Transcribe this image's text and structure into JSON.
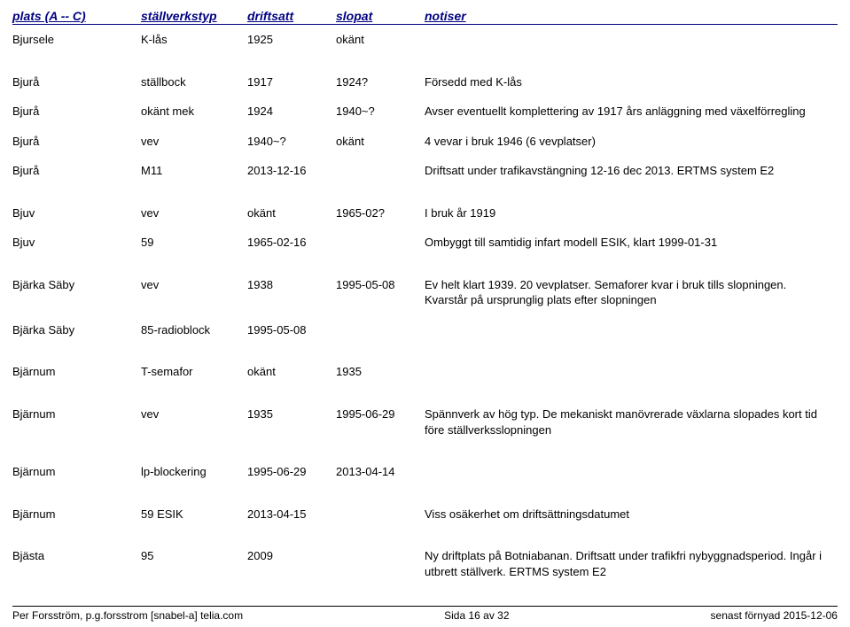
{
  "header": {
    "plats": "plats (A -- C)",
    "typ": "ställverkstyp",
    "drift": "driftsatt",
    "slopat": "slopat",
    "notiser": "notiser"
  },
  "rows": [
    {
      "group": 1,
      "plats": "Bjursele",
      "typ": "K-lås",
      "drift": "1925",
      "slopat": "okänt",
      "notiser": ""
    },
    {
      "group": 2,
      "plats": "Bjurå",
      "typ": "ställbock",
      "drift": "1917",
      "slopat": "1924?",
      "notiser": "Försedd med K-lås"
    },
    {
      "group": 2,
      "plats": "Bjurå",
      "typ": "okänt mek",
      "drift": "1924",
      "slopat": "1940~?",
      "notiser": "Avser eventuellt komplettering av 1917 års anläggning med växelförregling"
    },
    {
      "group": 2,
      "plats": "Bjurå",
      "typ": "vev",
      "drift": "1940~?",
      "slopat": "okänt",
      "notiser": "4 vevar i bruk 1946 (6 vevplatser)"
    },
    {
      "group": 2,
      "plats": "Bjurå",
      "typ": "M11",
      "drift": "2013-12-16",
      "slopat": "",
      "notiser": "Driftsatt under trafikavstängning 12-16 dec 2013. ERTMS system E2"
    },
    {
      "group": 3,
      "plats": "Bjuv",
      "typ": "vev",
      "drift": "okänt",
      "slopat": "1965-02?",
      "notiser": "I bruk år 1919"
    },
    {
      "group": 3,
      "plats": "Bjuv",
      "typ": "59",
      "drift": "1965-02-16",
      "slopat": "",
      "notiser": "Ombyggt till samtidig infart modell ESIK, klart 1999-01-31"
    },
    {
      "group": 4,
      "plats": "Bjärka Säby",
      "typ": "vev",
      "drift": "1938",
      "slopat": "1995-05-08",
      "notiser": "Ev helt klart 1939. 20 vevplatser. Semaforer kvar i bruk tills slopningen. Kvarstår på ursprunglig plats efter slopningen"
    },
    {
      "group": 4,
      "plats": "Bjärka Säby",
      "typ": "85-radioblock",
      "drift": "1995-05-08",
      "slopat": "",
      "notiser": ""
    },
    {
      "group": 5,
      "plats": "Bjärnum",
      "typ": "T-semafor",
      "drift": "okänt",
      "slopat": "1935",
      "notiser": ""
    },
    {
      "group": 6,
      "plats": "Bjärnum",
      "typ": "vev",
      "drift": "1935",
      "slopat": "1995-06-29",
      "notiser": "Spännverk av hög typ. De mekaniskt manövrerade växlarna slopades kort tid före ställverksslopningen"
    },
    {
      "group": 7,
      "plats": "Bjärnum",
      "typ": "lp-blockering",
      "drift": "1995-06-29",
      "slopat": "2013-04-14",
      "notiser": ""
    },
    {
      "group": 8,
      "plats": "Bjärnum",
      "typ": "59 ESIK",
      "drift": "2013-04-15",
      "slopat": "",
      "notiser": "Viss osäkerhet om driftsättningsdatumet"
    },
    {
      "group": 9,
      "plats": "Bjästa",
      "typ": "95",
      "drift": "2009",
      "slopat": "",
      "notiser": "Ny driftplats på Botniabanan. Driftsatt under trafikfri nybyggnadsperiod. Ingår i utbrett ställverk. ERTMS system E2"
    }
  ],
  "footer": {
    "left": "Per Forsström, p.g.forsstrom [snabel-a] telia.com",
    "center": "Sida 16 av 32",
    "right": "senast förnyad 2015-12-06"
  }
}
